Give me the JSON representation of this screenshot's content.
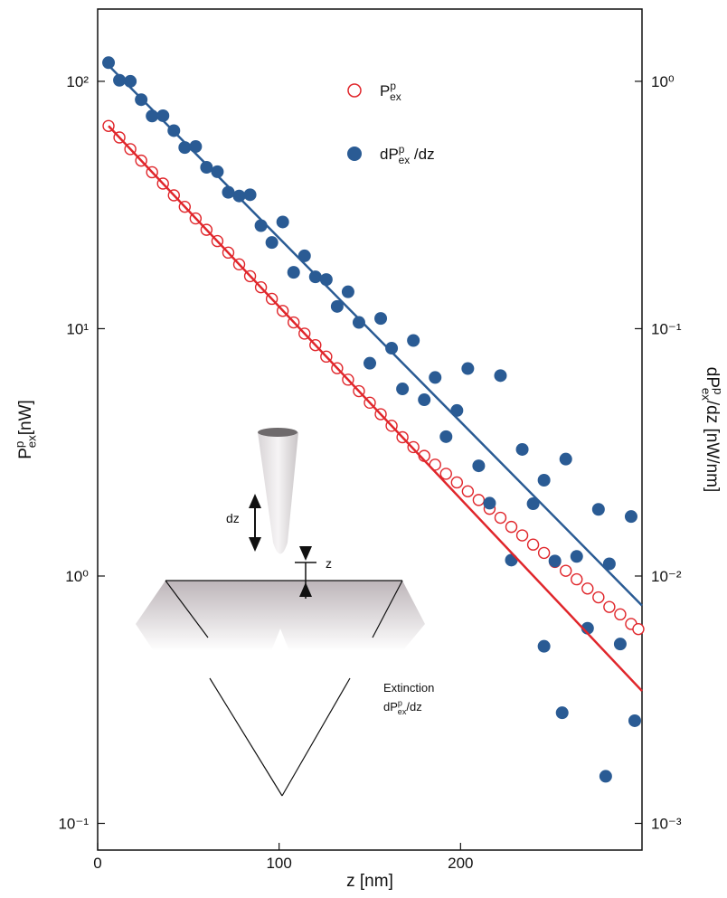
{
  "chart_data": {
    "type": "scatter",
    "ylabel": {
      "base": "P",
      "sup": "p",
      "sub": "ex",
      "suffix": "[nW]"
    },
    "y2label": {
      "base": "dP",
      "sup": "p",
      "sub": "ex",
      "suffix": "/dz [nW/nm]"
    },
    "xlabel": "z [nm]",
    "xlim": [
      0,
      300
    ],
    "xticks": [
      0,
      100,
      200
    ],
    "ylim": [
      0.078,
      196
    ],
    "yticks": [
      {
        "value": 0.1,
        "label": "10⁻¹"
      },
      {
        "value": 1,
        "label": "10⁰"
      },
      {
        "value": 10,
        "label": "10¹"
      },
      {
        "value": 100,
        "label": "10²"
      }
    ],
    "y2lim": [
      0.00078,
      1.96
    ],
    "y2ticks": [
      {
        "value": 0.001,
        "label": "10⁻³"
      },
      {
        "value": 0.01,
        "label": "10⁻²"
      },
      {
        "value": 0.1,
        "label": "10⁻¹"
      },
      {
        "value": 1,
        "label": "10⁰"
      }
    ],
    "log_scale": true,
    "series": [
      {
        "name": {
          "base": "P",
          "sup": "p",
          "sub": "ex",
          "suffix": ""
        },
        "color": "#e0262b",
        "marker": "open-circle",
        "x": [
          6,
          12,
          18,
          24,
          30,
          36,
          42,
          48,
          54,
          60,
          66,
          72,
          78,
          84,
          90,
          96,
          102,
          108,
          114,
          120,
          126,
          132,
          138,
          144,
          150,
          156,
          162,
          168,
          174,
          180,
          186,
          192,
          198,
          204,
          210,
          216,
          222,
          228,
          234,
          240,
          246,
          252,
          258,
          264,
          270,
          276,
          282,
          288,
          294,
          298
        ],
        "values": [
          66.0,
          59.3,
          53.2,
          47.8,
          42.9,
          38.6,
          34.6,
          31.1,
          27.9,
          25.1,
          22.6,
          20.3,
          18.2,
          16.3,
          14.7,
          13.2,
          11.8,
          10.6,
          9.55,
          8.58,
          7.71,
          6.92,
          6.22,
          5.59,
          5.02,
          4.51,
          4.05,
          3.64,
          3.32,
          3.06,
          2.82,
          2.59,
          2.39,
          2.2,
          2.03,
          1.87,
          1.72,
          1.58,
          1.46,
          1.34,
          1.24,
          1.14,
          1.05,
          0.97,
          0.89,
          0.82,
          0.75,
          0.7,
          0.64,
          0.61
        ]
      },
      {
        "name": {
          "base": "dP",
          "sup": "p",
          "sub": "ex",
          "suffix": " /dz"
        },
        "color": "#2a5b94",
        "marker": "filled-circle",
        "axis": "y2",
        "x": [
          6,
          12,
          18,
          24,
          30,
          36,
          42,
          48,
          54,
          60,
          66,
          72,
          78,
          84,
          90,
          96,
          102,
          108,
          114,
          120,
          126,
          132,
          138,
          144,
          150,
          156,
          162,
          168,
          174,
          180,
          186,
          192,
          198,
          204,
          210,
          216,
          222,
          228,
          234,
          240,
          246,
          246,
          252,
          256,
          258,
          264,
          270,
          276,
          280,
          282,
          288,
          294,
          296
        ],
        "values": [
          1.19,
          1.01,
          1.0,
          0.843,
          0.724,
          0.726,
          0.632,
          0.54,
          0.545,
          0.449,
          0.431,
          0.356,
          0.344,
          0.348,
          0.261,
          0.223,
          0.27,
          0.169,
          0.197,
          0.162,
          0.158,
          0.123,
          0.141,
          0.106,
          0.0725,
          0.11,
          0.0834,
          0.0571,
          0.0896,
          0.0516,
          0.0635,
          0.0366,
          0.0467,
          0.069,
          0.0279,
          0.0197,
          0.0646,
          0.0116,
          0.0325,
          0.0196,
          0.0244,
          0.0052,
          0.0115,
          0.0028,
          0.0297,
          0.012,
          0.00615,
          0.0186,
          0.00155,
          0.0112,
          0.00531,
          0.0174,
          0.0026
        ]
      },
      {
        "color": "#e0262b",
        "marker": "line",
        "x": [
          6,
          300
        ],
        "values": [
          66.0,
          0.343
        ]
      },
      {
        "color": "#2a5b94",
        "marker": "line",
        "axis": "y2",
        "x": [
          6,
          300
        ],
        "values": [
          1.16,
          0.0076
        ]
      }
    ],
    "annotations": {
      "dz": "dz",
      "z": "z",
      "extinction": "Extinction",
      "extinction_symbol": {
        "base": "dP",
        "sup": "p",
        "sub": "ex",
        "suffix": "/dz"
      }
    }
  }
}
